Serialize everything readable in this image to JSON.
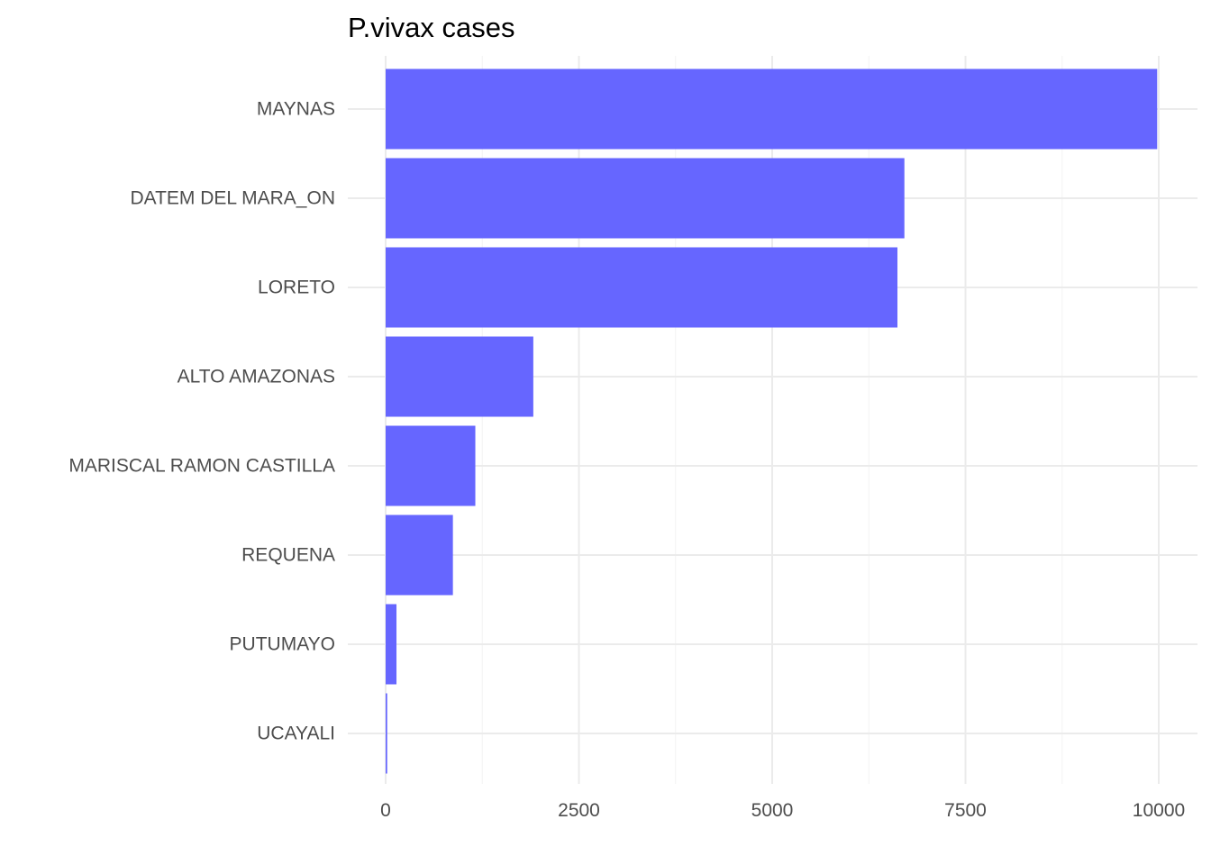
{
  "chart_data": {
    "type": "bar",
    "orientation": "horizontal",
    "title": "P.vivax cases",
    "xlabel": "",
    "ylabel": "",
    "categories": [
      "MAYNAS",
      "DATEM DEL MARA_ON",
      "LORETO",
      "ALTO AMAZONAS",
      "MARISCAL RAMON CASTILLA",
      "REQUENA",
      "PUTUMAYO",
      "UCAYALI"
    ],
    "values": [
      9980,
      6710,
      6620,
      1910,
      1160,
      870,
      140,
      20
    ],
    "xlim": [
      0,
      10500
    ],
    "xticks": [
      0,
      2500,
      5000,
      7500,
      10000
    ],
    "xtick_labels": [
      "0",
      "2500",
      "5000",
      "7500",
      "10000"
    ],
    "bar_color": "#6666ff",
    "grid": true,
    "legend": "none"
  }
}
